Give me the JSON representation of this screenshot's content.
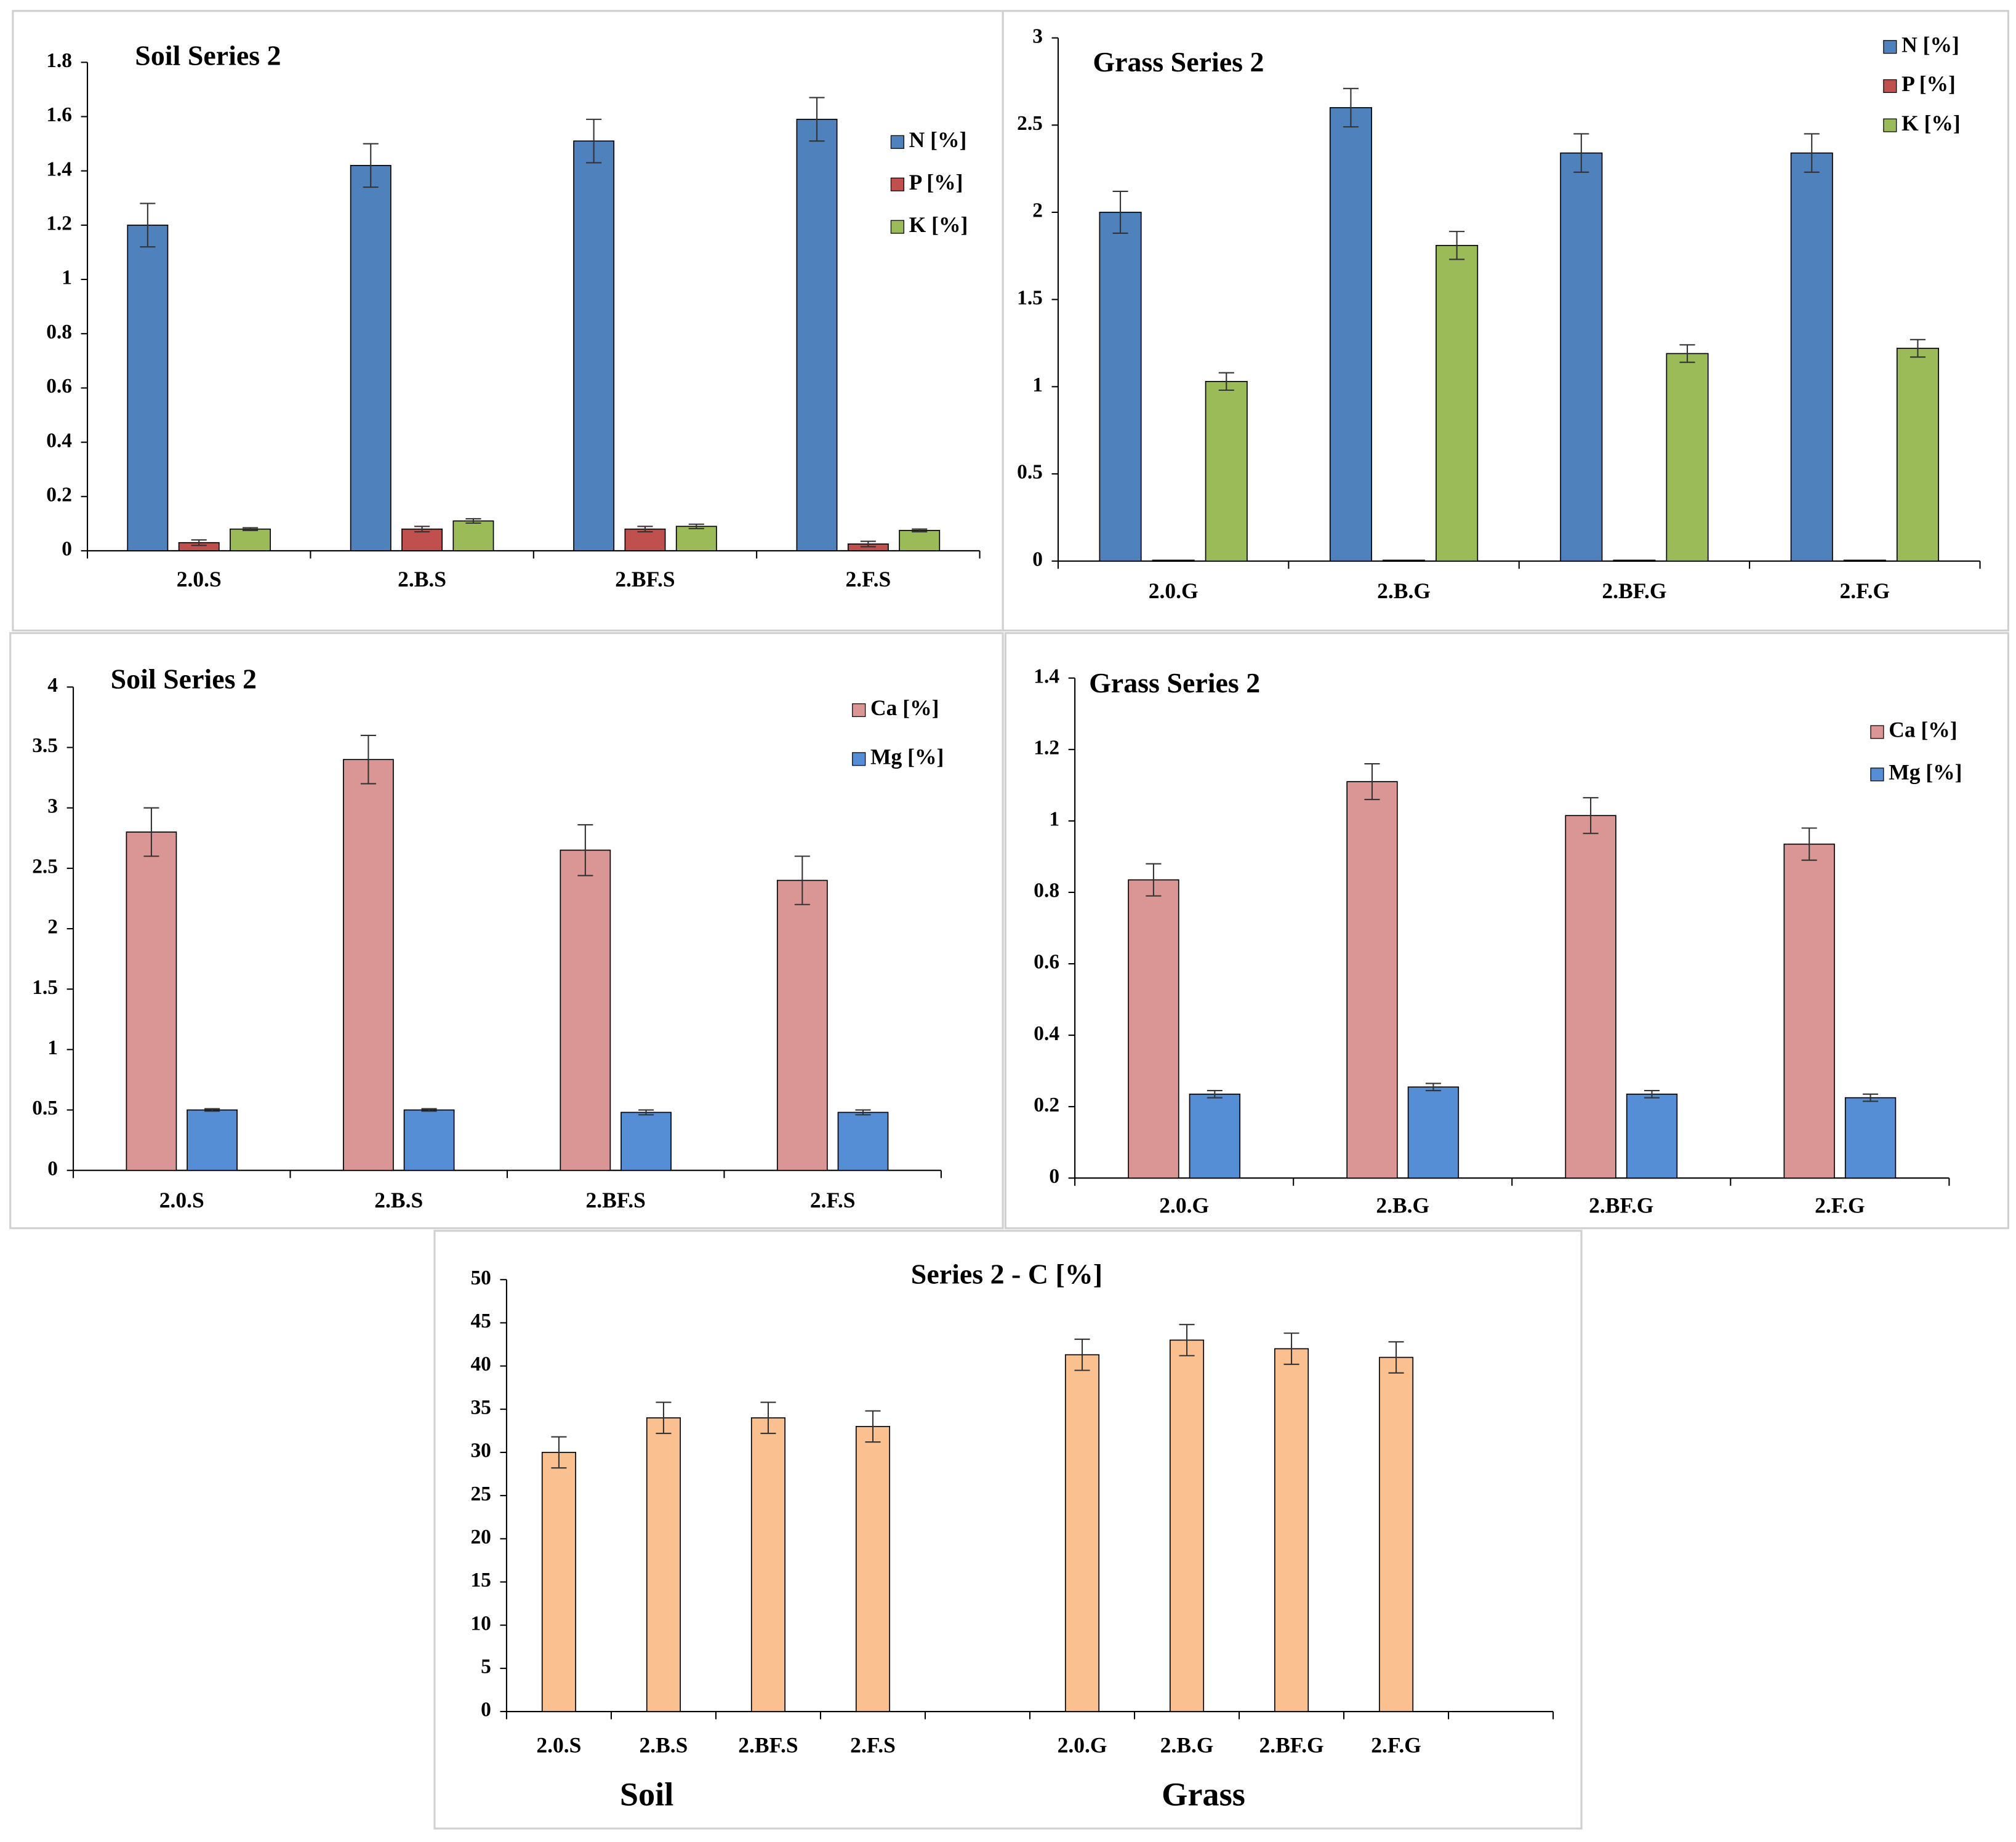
{
  "chart_data": [
    {
      "type": "bar",
      "title": "Soil Series 2",
      "categories": [
        "2.0.S",
        "2.B.S",
        "2.BF.S",
        "2.F.S"
      ],
      "series": [
        {
          "name": "N [%]",
          "color": "#4f81bd",
          "values": [
            1.2,
            1.42,
            1.51,
            1.59
          ],
          "errors": [
            0.08,
            0.08,
            0.08,
            0.08
          ]
        },
        {
          "name": "P [%]",
          "color": "#c0504d",
          "values": [
            0.03,
            0.08,
            0.08,
            0.025
          ],
          "errors": [
            0.01,
            0.01,
            0.01,
            0.01
          ]
        },
        {
          "name": "K [%]",
          "color": "#9bbb59",
          "values": [
            0.08,
            0.11,
            0.09,
            0.075
          ],
          "errors": [
            0.005,
            0.008,
            0.008,
            0.005
          ]
        }
      ],
      "ylim": [
        0,
        1.8
      ],
      "yticks": [
        0,
        0.2,
        0.4,
        0.6,
        0.8,
        1,
        1.2,
        1.4,
        1.6,
        1.8
      ]
    },
    {
      "type": "bar",
      "title": "Grass Series 2",
      "categories": [
        "2.0.G",
        "2.B.G",
        "2.BF.G",
        "2.F.G"
      ],
      "series": [
        {
          "name": "N [%]",
          "color": "#4f81bd",
          "values": [
            2.0,
            2.6,
            2.34,
            2.34
          ],
          "errors": [
            0.12,
            0.11,
            0.11,
            0.11
          ]
        },
        {
          "name": "P [%]",
          "color": "#c0504d",
          "values": [
            0.005,
            0.005,
            0.005,
            0.005
          ],
          "errors": [
            0,
            0,
            0,
            0
          ]
        },
        {
          "name": "K [%]",
          "color": "#9bbb59",
          "values": [
            1.03,
            1.81,
            1.19,
            1.22
          ],
          "errors": [
            0.05,
            0.08,
            0.05,
            0.05
          ]
        }
      ],
      "ylim": [
        0,
        3
      ],
      "yticks": [
        0,
        0.5,
        1,
        1.5,
        2,
        2.5,
        3
      ]
    },
    {
      "type": "bar",
      "title": "Soil Series 2",
      "categories": [
        "2.0.S",
        "2.B.S",
        "2.BF.S",
        "2.F.S"
      ],
      "series": [
        {
          "name": "Ca [%]",
          "color": "#d99694",
          "values": [
            2.8,
            3.4,
            2.65,
            2.4
          ],
          "errors": [
            0.2,
            0.2,
            0.21,
            0.2
          ]
        },
        {
          "name": "Mg [%]",
          "color": "#558ed5",
          "values": [
            0.5,
            0.5,
            0.48,
            0.48
          ],
          "errors": [
            0.01,
            0.01,
            0.02,
            0.02
          ]
        }
      ],
      "ylim": [
        0,
        4
      ],
      "yticks": [
        0,
        0.5,
        1,
        1.5,
        2,
        2.5,
        3,
        3.5,
        4
      ]
    },
    {
      "type": "bar",
      "title": "Grass Series 2",
      "categories": [
        "2.0.G",
        "2.B.G",
        "2.BF.G",
        "2.F.G"
      ],
      "series": [
        {
          "name": "Ca [%]",
          "color": "#d99694",
          "values": [
            0.835,
            1.11,
            1.015,
            0.935
          ],
          "errors": [
            0.045,
            0.05,
            0.05,
            0.045
          ]
        },
        {
          "name": "Mg [%]",
          "color": "#558ed5",
          "values": [
            0.235,
            0.255,
            0.235,
            0.225
          ],
          "errors": [
            0.01,
            0.01,
            0.01,
            0.01
          ]
        }
      ],
      "ylim": [
        0,
        1.4
      ],
      "yticks": [
        0,
        0.2,
        0.4,
        0.6,
        0.8,
        1,
        1.2,
        1.4
      ]
    },
    {
      "type": "bar",
      "title": "Series 2 - C [%]",
      "categories": [
        "2.0.S",
        "2.B.S",
        "2.BF.S",
        "2.F.S",
        null,
        "2.0.G",
        "2.B.G",
        "2.BF.G",
        "2.F.G",
        null
      ],
      "series": [
        {
          "color": "#fac090",
          "values": [
            30,
            34,
            34,
            33,
            null,
            41.3,
            43,
            42,
            41,
            null
          ],
          "errors": [
            1.8,
            1.8,
            1.8,
            1.8,
            null,
            1.8,
            1.8,
            1.8,
            1.8,
            null
          ]
        }
      ],
      "group_labels": [
        "Soil",
        "Grass"
      ],
      "ylim": [
        0,
        50
      ],
      "yticks": [
        0,
        5,
        10,
        15,
        20,
        25,
        30,
        35,
        40,
        45,
        50
      ]
    }
  ]
}
